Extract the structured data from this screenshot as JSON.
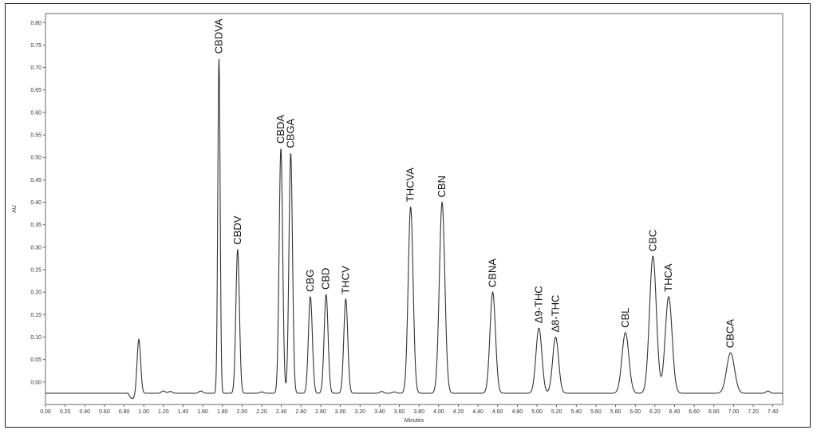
{
  "chart_data": {
    "type": "line",
    "title": "",
    "xlabel": "Minutes",
    "ylabel": "AU",
    "xlim": [
      0.0,
      7.5
    ],
    "ylim": [
      -0.05,
      0.82
    ],
    "x_ticks": [
      "0.00",
      "0.20",
      "0.40",
      "0.60",
      "0.80",
      "1.00",
      "1.20",
      "1.40",
      "1.60",
      "1.80",
      "2.00",
      "2.20",
      "2.40",
      "2.60",
      "2.80",
      "3.00",
      "3.20",
      "3.40",
      "3.60",
      "3.80",
      "4.00",
      "4.20",
      "4.40",
      "4.60",
      "4.80",
      "5.00",
      "5.20",
      "5.40",
      "5.60",
      "5.80",
      "6.00",
      "6.20",
      "6.40",
      "6.60",
      "6.80",
      "7.00",
      "7.20",
      "7.40"
    ],
    "y_ticks": [
      "0.00",
      "0.05",
      "0.10",
      "0.15",
      "0.20",
      "0.25",
      "0.30",
      "0.35",
      "0.40",
      "0.45",
      "0.50",
      "0.55",
      "0.60",
      "0.65",
      "0.70",
      "0.75",
      "0.80"
    ],
    "grid": false,
    "baseline": -0.025,
    "peaks": [
      {
        "label": "",
        "x": 0.95,
        "height": 0.095,
        "width": 0.018
      },
      {
        "label": "CBDVA",
        "x": 1.765,
        "height": 0.72,
        "width": 0.012
      },
      {
        "label": "CBDV",
        "x": 1.955,
        "height": 0.295,
        "width": 0.018
      },
      {
        "label": "CBDA",
        "x": 2.395,
        "height": 0.52,
        "width": 0.018
      },
      {
        "label": "CBGA",
        "x": 2.495,
        "height": 0.51,
        "width": 0.018
      },
      {
        "label": "CBG",
        "x": 2.695,
        "height": 0.19,
        "width": 0.02
      },
      {
        "label": "CBD",
        "x": 2.855,
        "height": 0.195,
        "width": 0.02
      },
      {
        "label": "THCV",
        "x": 3.055,
        "height": 0.185,
        "width": 0.02
      },
      {
        "label": "THCVA",
        "x": 3.715,
        "height": 0.39,
        "width": 0.025
      },
      {
        "label": "CBN",
        "x": 4.035,
        "height": 0.4,
        "width": 0.028
      },
      {
        "label": "CBNA",
        "x": 4.55,
        "height": 0.2,
        "width": 0.028
      },
      {
        "label": "Δ9-THC",
        "x": 5.02,
        "height": 0.12,
        "width": 0.03
      },
      {
        "label": "Δ8-THC",
        "x": 5.19,
        "height": 0.1,
        "width": 0.03
      },
      {
        "label": "CBL",
        "x": 5.9,
        "height": 0.11,
        "width": 0.035
      },
      {
        "label": "CBC",
        "x": 6.18,
        "height": 0.28,
        "width": 0.035
      },
      {
        "label": "THCA",
        "x": 6.34,
        "height": 0.19,
        "width": 0.035
      },
      {
        "label": "CBCA",
        "x": 6.97,
        "height": 0.065,
        "width": 0.04
      }
    ]
  }
}
